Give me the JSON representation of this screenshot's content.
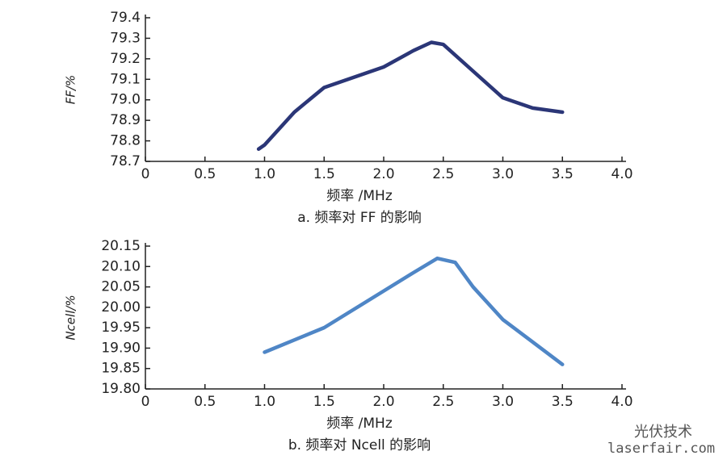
{
  "chart_data": [
    {
      "type": "line",
      "ylabel": "FF/%",
      "xlabel": "频率 /MHz",
      "caption": "a. 频率对 FF 的影响",
      "x": [
        0.95,
        1.0,
        1.25,
        1.5,
        1.75,
        2.0,
        2.25,
        2.4,
        2.5,
        2.75,
        3.0,
        3.25,
        3.5
      ],
      "series": [
        {
          "name": null,
          "color": "#2b3677",
          "values": [
            78.76,
            78.78,
            78.94,
            79.06,
            79.11,
            79.16,
            79.24,
            79.28,
            79.27,
            79.14,
            79.01,
            78.96,
            78.94
          ]
        }
      ],
      "xlim": [
        0,
        4
      ],
      "xticks": [
        0,
        0.5,
        {
          "value": 1,
          "label": "1.0"
        },
        1.5,
        {
          "value": 2,
          "label": "2.0"
        },
        2.5,
        {
          "value": 3,
          "label": "3.0"
        },
        3.5,
        {
          "value": 4,
          "label": "4.0"
        }
      ],
      "ylim": [
        78.7,
        79.4
      ],
      "yticks": [
        78.7,
        78.8,
        78.9,
        {
          "value": 79,
          "label": "79.0"
        },
        79.1,
        79.2,
        79.3,
        79.4
      ],
      "grid": false
    },
    {
      "type": "line",
      "ylabel": "Ncell/%",
      "xlabel": "频率 /MHz",
      "caption": "b. 频率对 Ncell 的影响",
      "x": [
        1.0,
        1.25,
        1.5,
        1.75,
        2.0,
        2.25,
        2.45,
        2.6,
        2.75,
        3.0,
        3.25,
        3.5
      ],
      "series": [
        {
          "name": null,
          "color": "#4f86c6",
          "values": [
            19.89,
            19.92,
            19.95,
            19.995,
            20.04,
            20.085,
            20.12,
            20.11,
            20.05,
            19.97,
            19.915,
            19.86
          ]
        }
      ],
      "xlim": [
        0,
        4
      ],
      "xticks": [
        0,
        0.5,
        {
          "value": 1,
          "label": "1.0"
        },
        1.5,
        {
          "value": 2,
          "label": "2.0"
        },
        2.5,
        {
          "value": 3,
          "label": "3.0"
        },
        3.5,
        {
          "value": 4,
          "label": "4.0"
        }
      ],
      "ylim": [
        19.8,
        20.15
      ],
      "yticks": [
        {
          "value": 19.8,
          "label": "19.80"
        },
        19.85,
        {
          "value": 19.9,
          "label": "19.90"
        },
        19.95,
        {
          "value": 20,
          "label": "20.00"
        },
        20.05,
        {
          "value": 20.1,
          "label": "20.10"
        },
        20.15
      ],
      "grid": false
    }
  ],
  "watermark": {
    "brand": "光伏技术",
    "site": "laserfair.com"
  }
}
